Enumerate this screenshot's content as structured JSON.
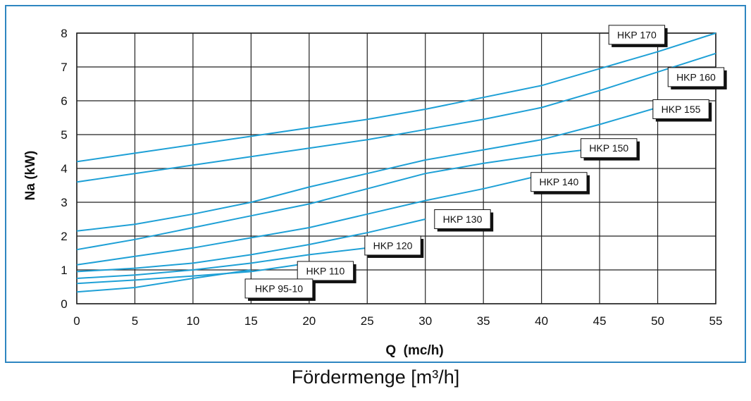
{
  "caption": "Fördermenge [m³/h]",
  "colors": {
    "frame": "#2e86c1",
    "curve": "#1ea0d6",
    "grid": "#222222",
    "label_shadow": "#111111"
  },
  "chart_data": {
    "type": "line",
    "xlabel": "Q  (mc/h)",
    "ylabel": "Na (kW)",
    "xlim": [
      0,
      55
    ],
    "ylim": [
      0,
      8
    ],
    "xticks": [
      0,
      5,
      10,
      15,
      20,
      25,
      30,
      35,
      40,
      45,
      50,
      55
    ],
    "yticks": [
      0,
      1,
      2,
      3,
      4,
      5,
      6,
      7,
      8
    ],
    "grid": true,
    "series": [
      {
        "name": "HKP 170",
        "x": [
          0,
          5,
          10,
          15,
          20,
          25,
          30,
          35,
          40,
          45,
          50,
          55
        ],
        "y": [
          4.2,
          4.45,
          4.7,
          4.95,
          5.2,
          5.45,
          5.75,
          6.1,
          6.45,
          6.95,
          7.45,
          8.0
        ]
      },
      {
        "name": "HKP 160",
        "x": [
          0,
          5,
          10,
          15,
          20,
          25,
          30,
          35,
          40,
          45,
          50,
          55
        ],
        "y": [
          3.6,
          3.85,
          4.1,
          4.35,
          4.6,
          4.85,
          5.15,
          5.45,
          5.8,
          6.3,
          6.85,
          7.4
        ]
      },
      {
        "name": "HKP 155",
        "x": [
          0,
          5,
          10,
          15,
          20,
          25,
          30,
          35,
          40,
          45,
          50
        ],
        "y": [
          2.15,
          2.35,
          2.65,
          3.0,
          3.45,
          3.85,
          4.25,
          4.55,
          4.85,
          5.3,
          5.8
        ]
      },
      {
        "name": "HKP 150",
        "x": [
          0,
          5,
          10,
          15,
          20,
          25,
          30,
          35,
          40,
          45
        ],
        "y": [
          1.6,
          1.9,
          2.25,
          2.6,
          2.95,
          3.4,
          3.85,
          4.15,
          4.4,
          4.6
        ]
      },
      {
        "name": "HKP 140",
        "x": [
          0,
          5,
          10,
          15,
          20,
          25,
          30,
          35,
          40
        ],
        "y": [
          1.15,
          1.4,
          1.65,
          1.95,
          2.25,
          2.65,
          3.05,
          3.4,
          3.8
        ]
      },
      {
        "name": "HKP 130",
        "x": [
          0,
          5,
          10,
          15,
          20,
          25,
          30
        ],
        "y": [
          0.95,
          1.05,
          1.2,
          1.45,
          1.75,
          2.1,
          2.5
        ]
      },
      {
        "name": "HKP 120",
        "x": [
          0,
          5,
          10,
          15,
          20,
          25
        ],
        "y": [
          0.75,
          0.85,
          1.0,
          1.2,
          1.45,
          1.65
        ]
      },
      {
        "name": "HKP 110",
        "x": [
          0,
          5,
          10,
          15,
          20
        ],
        "y": [
          0.6,
          0.7,
          0.82,
          0.95,
          1.2
        ]
      },
      {
        "name": "HKP 95-10",
        "x": [
          0,
          5,
          10,
          15
        ],
        "y": [
          0.35,
          0.48,
          0.75,
          1.0
        ]
      }
    ]
  }
}
